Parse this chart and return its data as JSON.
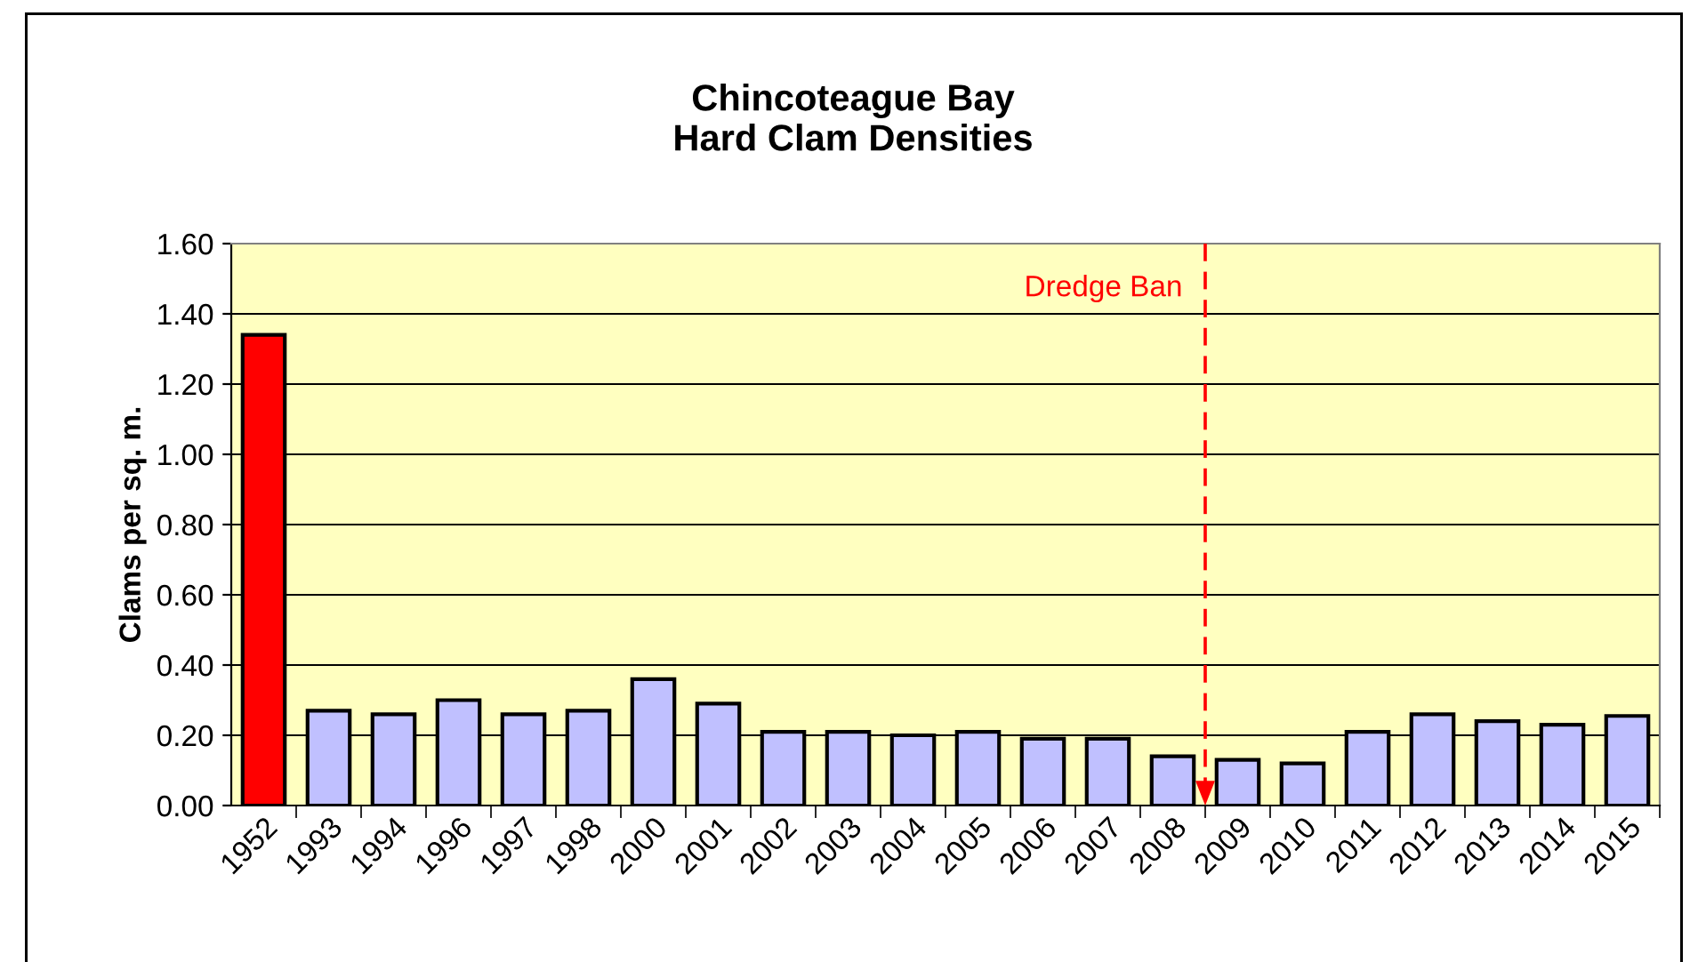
{
  "chart_data": {
    "type": "bar",
    "title": "Chincoteague Bay\nHard Clam Densities",
    "ylabel": "Clams per sq. m.",
    "categories": [
      "1952",
      "1993",
      "1994",
      "1996",
      "1997",
      "1998",
      "2000",
      "2001",
      "2002",
      "2003",
      "2004",
      "2005",
      "2006",
      "2007",
      "2008",
      "2009",
      "2010",
      "2011",
      "2012",
      "2013",
      "2014",
      "2015"
    ],
    "values": [
      1.34,
      0.27,
      0.26,
      0.3,
      0.26,
      0.27,
      0.36,
      0.29,
      0.21,
      0.21,
      0.2,
      0.21,
      0.19,
      0.19,
      0.14,
      0.13,
      0.12,
      0.21,
      0.26,
      0.24,
      0.23,
      0.255
    ],
    "colors": [
      "#ff0000",
      "#c0c0ff",
      "#c0c0ff",
      "#c0c0ff",
      "#c0c0ff",
      "#c0c0ff",
      "#c0c0ff",
      "#c0c0ff",
      "#c0c0ff",
      "#c0c0ff",
      "#c0c0ff",
      "#c0c0ff",
      "#c0c0ff",
      "#c0c0ff",
      "#c0c0ff",
      "#c0c0ff",
      "#c0c0ff",
      "#c0c0ff",
      "#c0c0ff",
      "#c0c0ff",
      "#c0c0ff",
      "#c0c0ff"
    ],
    "ylim": [
      0,
      1.6
    ],
    "yticks": [
      {
        "value": 0,
        "label": "0.00"
      },
      {
        "value": 0.2,
        "label": "0.20"
      },
      {
        "value": 0.4,
        "label": "0.40"
      },
      {
        "value": 0.6,
        "label": "0.60"
      },
      {
        "value": 0.8,
        "label": "0.80"
      },
      {
        "value": 1.0,
        "label": "1.00"
      },
      {
        "value": 1.2,
        "label": "1.20"
      },
      {
        "value": 1.4,
        "label": "1.40"
      },
      {
        "value": 1.6,
        "label": "1.60"
      }
    ],
    "grid": "y",
    "annotations": [
      "Dredge Ban"
    ]
  }
}
